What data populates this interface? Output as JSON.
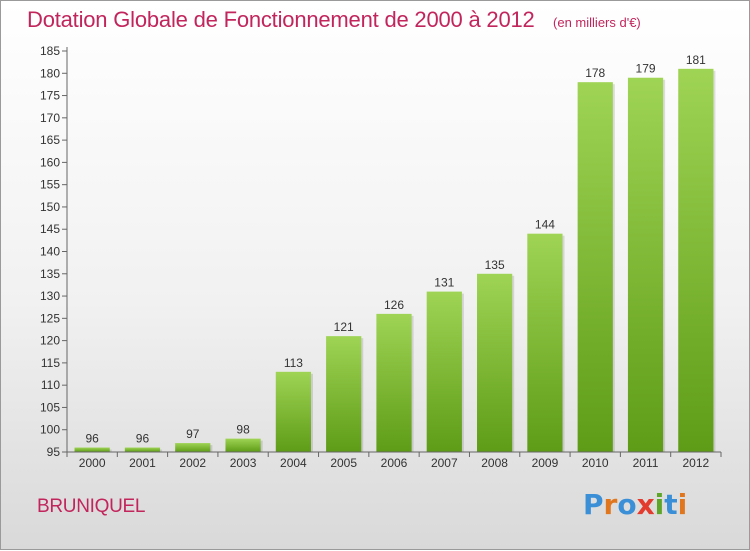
{
  "header": {
    "title": "Dotation Globale de Fonctionnement de 2000 à 2012",
    "subtitle": "(en milliers d'€)"
  },
  "footer": {
    "commune": "BRUNIQUEL",
    "logo_text": "Proxiti"
  },
  "colors": {
    "title": "#c2255c",
    "bar_top": "#9fd454",
    "bar_bottom": "#5e9c17",
    "logo": [
      "#3a8fd6",
      "#e0761d",
      "#3a8fd6",
      "#e33b2e",
      "#5fa52a",
      "#3a8fd6",
      "#e0761d"
    ]
  },
  "chart_data": {
    "type": "bar",
    "title": "Dotation Globale de Fonctionnement de 2000 à 2012",
    "subtitle": "(en milliers d'€)",
    "categories": [
      "2000",
      "2001",
      "2002",
      "2003",
      "2004",
      "2005",
      "2006",
      "2007",
      "2008",
      "2009",
      "2010",
      "2011",
      "2012"
    ],
    "values": [
      96,
      96,
      97,
      98,
      113,
      121,
      126,
      131,
      135,
      144,
      178,
      179,
      181
    ],
    "ylim": [
      95,
      185
    ],
    "yticks": [
      95,
      100,
      105,
      110,
      115,
      120,
      125,
      130,
      135,
      140,
      145,
      150,
      155,
      160,
      165,
      170,
      175,
      180,
      185
    ],
    "grid": false,
    "legend": "none",
    "xlabel": "",
    "ylabel": ""
  }
}
